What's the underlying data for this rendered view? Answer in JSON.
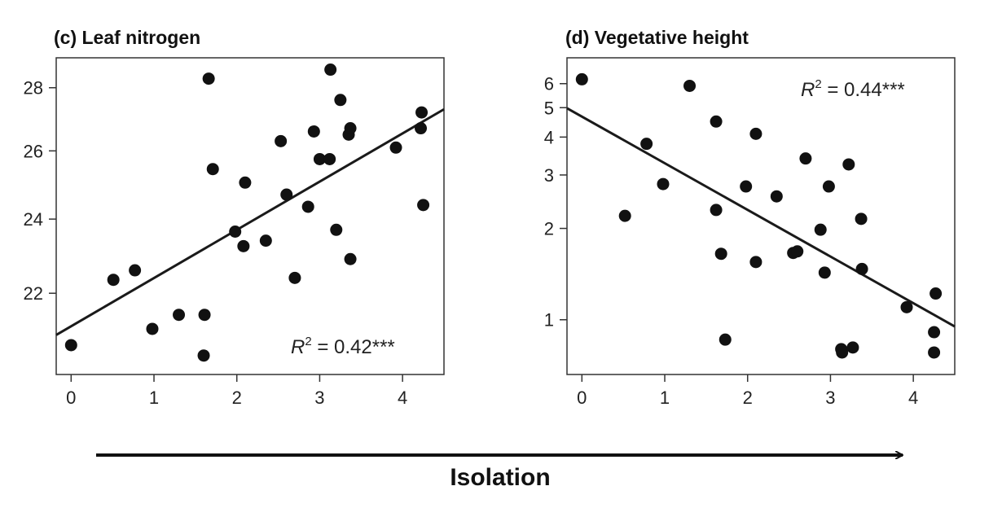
{
  "panels": [
    {
      "title": "(c) Leaf nitrogen",
      "annotation": {
        "base": "R",
        "sup": "2",
        "rest": " = 0.42***"
      },
      "chart_data": {
        "type": "scatter",
        "title": "(c) Leaf nitrogen",
        "xlabel": "",
        "ylabel": "",
        "xlim": [
          -0.18,
          4.5
        ],
        "ylim": [
          20.0,
          29.0
        ],
        "yscale": "log",
        "x_ticks": [
          0,
          1,
          2,
          3,
          4
        ],
        "y_ticks": [
          22,
          24,
          26,
          28
        ],
        "points": [
          {
            "x": 0.0,
            "y": 20.7
          },
          {
            "x": 0.51,
            "y": 22.35
          },
          {
            "x": 0.77,
            "y": 22.6
          },
          {
            "x": 0.98,
            "y": 21.1
          },
          {
            "x": 1.3,
            "y": 21.45
          },
          {
            "x": 1.6,
            "y": 20.45
          },
          {
            "x": 1.61,
            "y": 21.45
          },
          {
            "x": 1.66,
            "y": 28.3
          },
          {
            "x": 1.71,
            "y": 25.45
          },
          {
            "x": 1.98,
            "y": 23.65
          },
          {
            "x": 2.08,
            "y": 23.25
          },
          {
            "x": 2.1,
            "y": 25.05
          },
          {
            "x": 2.35,
            "y": 23.4
          },
          {
            "x": 2.53,
            "y": 26.3
          },
          {
            "x": 2.6,
            "y": 24.7
          },
          {
            "x": 2.7,
            "y": 22.4
          },
          {
            "x": 2.86,
            "y": 24.35
          },
          {
            "x": 2.93,
            "y": 26.6
          },
          {
            "x": 3.0,
            "y": 25.75
          },
          {
            "x": 3.12,
            "y": 25.75
          },
          {
            "x": 3.13,
            "y": 28.6
          },
          {
            "x": 3.2,
            "y": 23.7
          },
          {
            "x": 3.25,
            "y": 27.6
          },
          {
            "x": 3.35,
            "y": 26.5
          },
          {
            "x": 3.37,
            "y": 26.7
          },
          {
            "x": 3.37,
            "y": 22.9
          },
          {
            "x": 3.92,
            "y": 26.1
          },
          {
            "x": 4.22,
            "y": 26.7
          },
          {
            "x": 4.23,
            "y": 27.2
          },
          {
            "x": 4.25,
            "y": 24.4
          }
        ],
        "fit_line": {
          "x": [
            -0.18,
            4.5
          ],
          "y": [
            20.95,
            27.3
          ]
        }
      }
    },
    {
      "title": "(d) Vegetative height",
      "annotation": {
        "base": "R",
        "sup": "2",
        "rest": " = 0.44***"
      },
      "chart_data": {
        "type": "scatter",
        "title": "(d) Vegetative height",
        "xlabel": "",
        "ylabel": "",
        "xlim": [
          -0.18,
          4.5
        ],
        "ylim": [
          0.66,
          7.3
        ],
        "yscale": "log",
        "x_ticks": [
          0,
          1,
          2,
          3,
          4
        ],
        "y_ticks": [
          1,
          2,
          3,
          4,
          5,
          6
        ],
        "points": [
          {
            "x": 0.0,
            "y": 6.2
          },
          {
            "x": 0.52,
            "y": 2.2
          },
          {
            "x": 0.78,
            "y": 3.8
          },
          {
            "x": 0.98,
            "y": 2.8
          },
          {
            "x": 1.3,
            "y": 5.9
          },
          {
            "x": 1.62,
            "y": 4.5
          },
          {
            "x": 1.62,
            "y": 2.3
          },
          {
            "x": 1.68,
            "y": 1.65
          },
          {
            "x": 1.73,
            "y": 0.86
          },
          {
            "x": 1.98,
            "y": 2.75
          },
          {
            "x": 2.1,
            "y": 4.1
          },
          {
            "x": 2.1,
            "y": 1.55
          },
          {
            "x": 2.35,
            "y": 2.55
          },
          {
            "x": 2.55,
            "y": 1.66
          },
          {
            "x": 2.6,
            "y": 1.68
          },
          {
            "x": 2.7,
            "y": 3.4
          },
          {
            "x": 2.88,
            "y": 1.98
          },
          {
            "x": 2.93,
            "y": 1.43
          },
          {
            "x": 2.98,
            "y": 2.75
          },
          {
            "x": 3.13,
            "y": 0.8
          },
          {
            "x": 3.14,
            "y": 0.78
          },
          {
            "x": 3.22,
            "y": 3.25
          },
          {
            "x": 3.27,
            "y": 0.81
          },
          {
            "x": 3.37,
            "y": 2.15
          },
          {
            "x": 3.38,
            "y": 1.47
          },
          {
            "x": 3.92,
            "y": 1.1
          },
          {
            "x": 4.25,
            "y": 0.78
          },
          {
            "x": 4.25,
            "y": 0.91
          },
          {
            "x": 4.27,
            "y": 1.22
          }
        ],
        "fit_line": {
          "x": [
            -0.18,
            4.5
          ],
          "y": [
            4.98,
            0.95
          ]
        }
      }
    }
  ],
  "xaxis_caption": "Isolation"
}
